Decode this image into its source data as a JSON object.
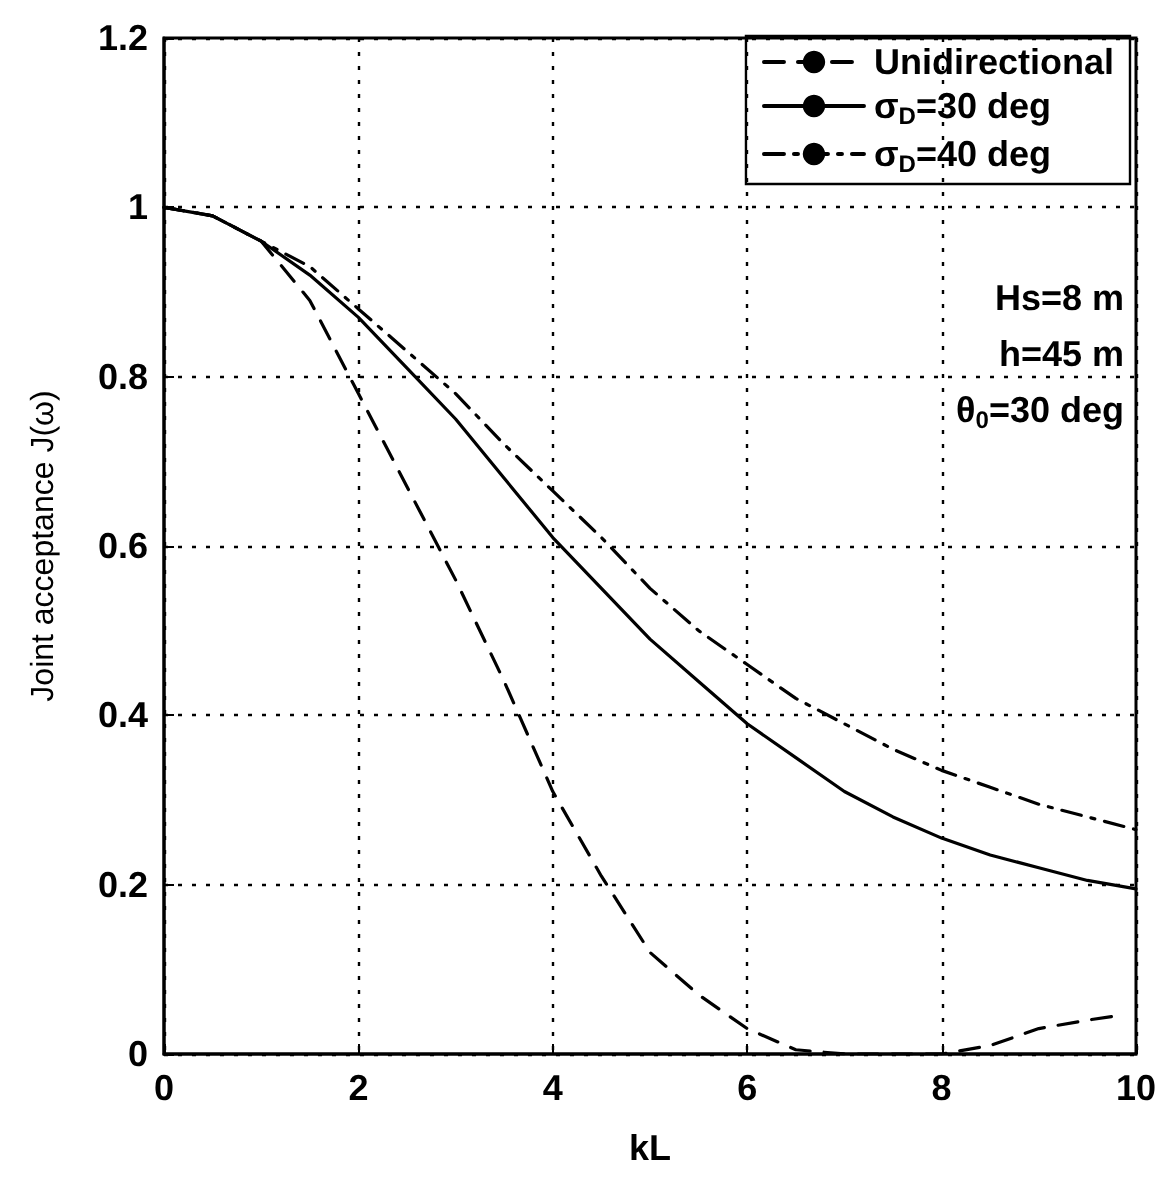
{
  "chart_data": {
    "type": "line",
    "xlabel": "kL",
    "ylabel": "Joint acceptance J(ω)",
    "xlim": [
      0,
      10
    ],
    "xticks": [
      0,
      2,
      4,
      6,
      8,
      10
    ],
    "ylim": [
      0,
      1.2
    ],
    "yticks": [
      0,
      0.2,
      0.4,
      0.6,
      0.8,
      1,
      1.2
    ],
    "grid": true,
    "legend": "top right",
    "marker": "none",
    "annotations": [
      "Hs=8 m",
      "h=45 m",
      "θ$_{0}$=30 deg"
    ],
    "series": [
      {
        "name": "Unidirectional",
        "color": "#000000",
        "line_style": "dashed",
        "x": [
          0,
          0.5,
          1,
          1.5,
          2,
          2.5,
          3,
          3.5,
          4,
          4.5,
          5,
          5.5,
          6,
          6.5,
          7,
          7.5,
          8,
          8.5,
          9,
          9.5,
          9.8
        ],
        "values": [
          1,
          0.99,
          0.96,
          0.89,
          0.78,
          0.67,
          0.56,
          0.44,
          0.31,
          0.21,
          0.12,
          0.07,
          0.03,
          0.005,
          0,
          0,
          0,
          0.01,
          0.03,
          0.04,
          0.045
        ]
      },
      {
        "name": "σ$_{D}$=30 deg",
        "color": "#000000",
        "line_style": "solid",
        "x": [
          0,
          0.5,
          1,
          1.5,
          2,
          2.5,
          3,
          3.5,
          4,
          4.5,
          5,
          5.5,
          6,
          6.5,
          7,
          7.5,
          8,
          8.5,
          9,
          9.5,
          10
        ],
        "values": [
          1,
          0.99,
          0.96,
          0.92,
          0.87,
          0.81,
          0.75,
          0.68,
          0.61,
          0.55,
          0.49,
          0.44,
          0.39,
          0.35,
          0.31,
          0.28,
          0.255,
          0.235,
          0.22,
          0.205,
          0.195
        ]
      },
      {
        "name": "σ$_{D}$=40 deg",
        "color": "#000000",
        "line_style": "dashdot",
        "x": [
          0,
          0.5,
          1,
          1.5,
          2,
          2.5,
          3,
          3.5,
          4,
          4.5,
          5,
          5.5,
          6,
          6.5,
          7,
          7.5,
          8,
          8.5,
          9,
          9.5,
          10
        ],
        "values": [
          1,
          0.99,
          0.96,
          0.93,
          0.88,
          0.83,
          0.78,
          0.72,
          0.665,
          0.61,
          0.55,
          0.5,
          0.46,
          0.42,
          0.39,
          0.36,
          0.335,
          0.315,
          0.295,
          0.28,
          0.265
        ]
      }
    ]
  }
}
